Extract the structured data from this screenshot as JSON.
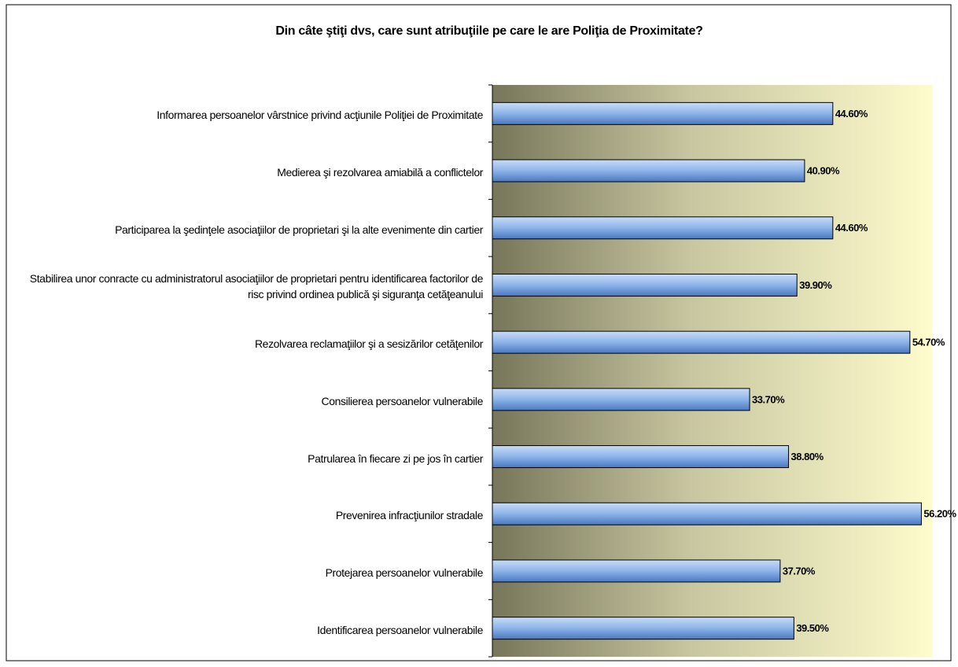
{
  "chart_data": {
    "type": "bar",
    "orientation": "horizontal",
    "title": "Din câte ştiţi dvs, care sunt atribuţiile pe care le are Poliţia de Proximitate?",
    "categories": [
      "Informarea persoanelor vârstnice privind acţiunile Poliţiei de Proximitate",
      "Medierea şi rezolvarea amiabilă a conflictelor",
      "Participarea la şedinţele asociaţiilor de proprietari şi la alte evenimente din cartier",
      "Stabilirea unor conracte cu administratorul asociaţiilor de proprietari pentru identificarea factorilor de risc privind ordinea publică şi siguranţa cetăţeanului",
      "Rezolvarea reclamaţiilor şi a sesizărilor cetăţenilor",
      "Consilierea persoanelor vulnerabile",
      "Patrularea în fiecare zi pe jos în cartier",
      "Prevenirea infracţiunilor stradale",
      "Protejarea persoanelor vulnerabile",
      "Identificarea persoanelor vulnerabile"
    ],
    "values": [
      44.6,
      40.9,
      44.6,
      39.9,
      54.7,
      33.7,
      38.8,
      56.2,
      37.7,
      39.5
    ],
    "value_labels": [
      "44.60%",
      "40.90%",
      "44.60%",
      "39.90%",
      "54.70%",
      "33.70%",
      "38.80%",
      "56.20%",
      "37.70%",
      "39.50%"
    ],
    "color": "#8db4e8",
    "xlim": [
      0,
      57.6
    ]
  }
}
